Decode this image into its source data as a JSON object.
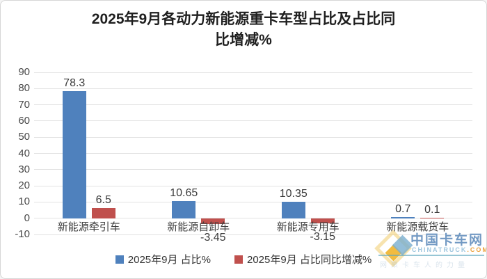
{
  "title": {
    "line1": "2025年9月各动力新能源重卡车型占比及占比同",
    "line2": "比增减%"
  },
  "chart_data": {
    "type": "bar",
    "categories": [
      "新能源牵引车",
      "新能源自卸车",
      "新能源专用车",
      "新能源载货车"
    ],
    "series": [
      {
        "name": "2025年9月 占比%",
        "color": "#4F81BD",
        "values": [
          78.3,
          10.65,
          10.35,
          0.7
        ]
      },
      {
        "name": "2025年9月 占比同比增减%",
        "color": "#C0504D",
        "values": [
          6.5,
          -3.45,
          -3.15,
          0.1
        ]
      }
    ],
    "title": "2025年9月各动力新能源重卡车型占比及占比同比增减%",
    "xlabel": "",
    "ylabel": "",
    "ylim": [
      -10,
      90
    ],
    "ytick_step": 10,
    "yticks": [
      90,
      80,
      70,
      60,
      50,
      40,
      30,
      20,
      10,
      0,
      -10
    ],
    "grid": true,
    "gridline_color": "#E2E2E2",
    "legend_position": "bottom"
  },
  "watermark": {
    "site_name": "中国卡车网",
    "url_main": "CHINATRUCK",
    "url_suffix": ".COM",
    "slogan": "网聚卡车人的力量"
  }
}
